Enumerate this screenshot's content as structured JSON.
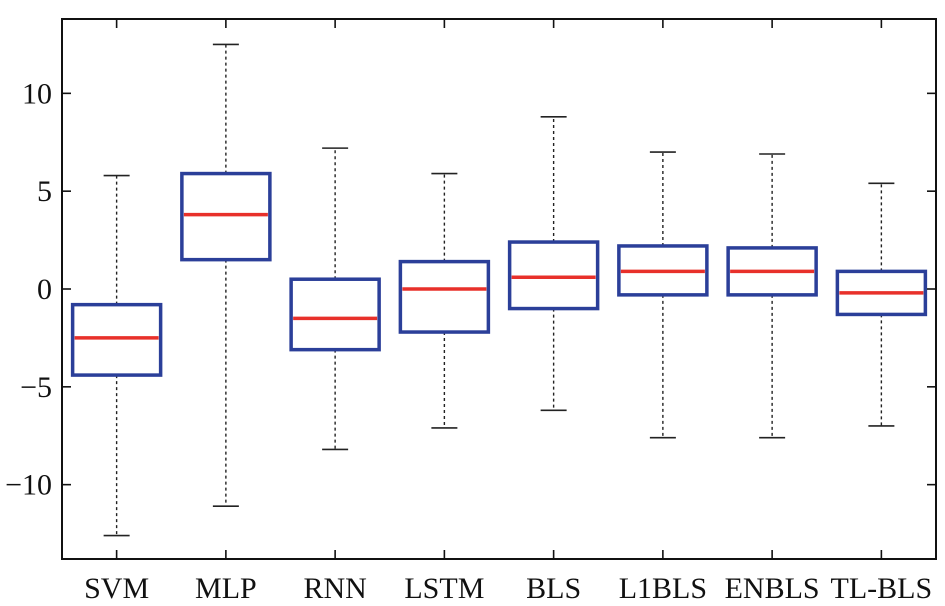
{
  "chart_data": {
    "type": "boxplot",
    "title": "",
    "xlabel": "",
    "ylabel": "",
    "ylim": [
      -13.8,
      13.8
    ],
    "yticks": [
      -10,
      -5,
      0,
      5,
      10
    ],
    "ytick_labels": [
      "−10",
      "−5",
      "0",
      "5",
      "10"
    ],
    "grid": false,
    "categories": [
      "SVM",
      "MLP",
      "RNN",
      "LSTM",
      "BLS",
      "L1BLS",
      "ENBLS",
      "TL-BLS"
    ],
    "boxes": [
      {
        "whisker_low": -12.6,
        "q1": -4.4,
        "median": -2.5,
        "q3": -0.8,
        "whisker_high": 5.8
      },
      {
        "whisker_low": -11.1,
        "q1": 1.5,
        "median": 3.8,
        "q3": 5.9,
        "whisker_high": 12.5
      },
      {
        "whisker_low": -8.2,
        "q1": -3.1,
        "median": -1.5,
        "q3": 0.5,
        "whisker_high": 7.2
      },
      {
        "whisker_low": -7.1,
        "q1": -2.2,
        "median": 0.0,
        "q3": 1.4,
        "whisker_high": 5.9
      },
      {
        "whisker_low": -6.2,
        "q1": -1.0,
        "median": 0.6,
        "q3": 2.4,
        "whisker_high": 8.8
      },
      {
        "whisker_low": -7.6,
        "q1": -0.3,
        "median": 0.9,
        "q3": 2.2,
        "whisker_high": 7.0
      },
      {
        "whisker_low": -7.6,
        "q1": -0.3,
        "median": 0.9,
        "q3": 2.1,
        "whisker_high": 6.9
      },
      {
        "whisker_low": -7.0,
        "q1": -1.3,
        "median": -0.2,
        "q3": 0.9,
        "whisker_high": 5.4
      }
    ],
    "colors": {
      "box": "#2b3f99",
      "median": "#e8302a",
      "whisker": "#222222",
      "axes": "#111111"
    }
  }
}
